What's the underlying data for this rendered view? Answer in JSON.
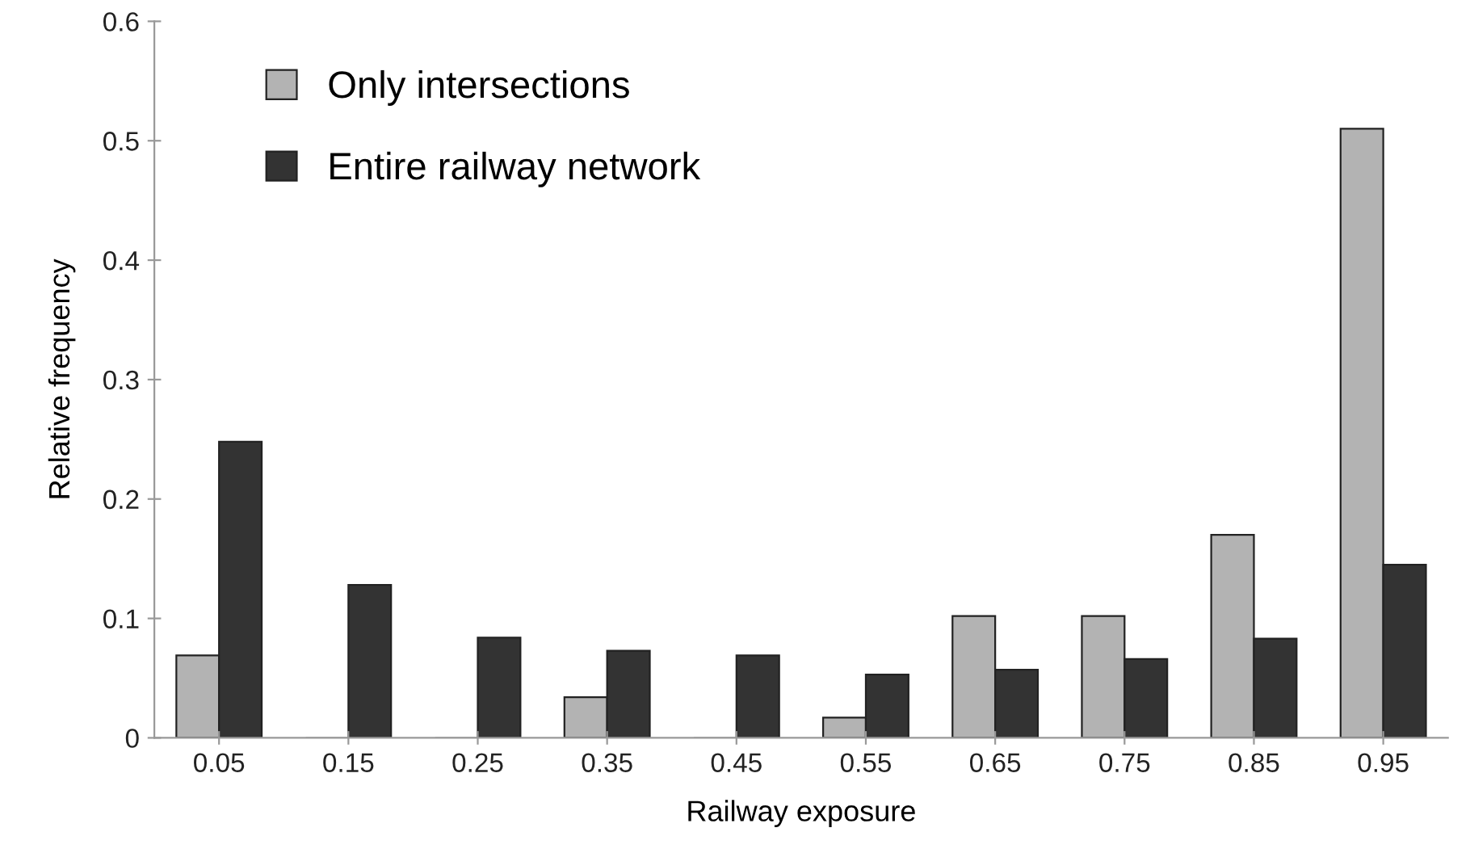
{
  "chart_data": {
    "type": "bar",
    "xlabel": "Railway exposure",
    "ylabel": "Relative frequency",
    "categories": [
      "0.05",
      "0.15",
      "0.25",
      "0.35",
      "0.45",
      "0.55",
      "0.65",
      "0.75",
      "0.85",
      "0.95"
    ],
    "series": [
      {
        "name": "Only intersections",
        "color": "#b3b3b3",
        "values": [
          0.069,
          0,
          0,
          0.034,
          0,
          0.017,
          0.102,
          0.102,
          0.17,
          0.51
        ]
      },
      {
        "name": "Entire railway network",
        "color": "#333333",
        "values": [
          0.248,
          0.128,
          0.084,
          0.073,
          0.069,
          0.053,
          0.057,
          0.066,
          0.083,
          0.145
        ]
      }
    ],
    "ylim": [
      0,
      0.6
    ],
    "yticks": [
      {
        "value": 0,
        "label": "0"
      },
      0.1,
      0.2,
      0.3,
      0.4,
      0.5,
      0.6
    ],
    "grid": false,
    "legend": "top left"
  }
}
